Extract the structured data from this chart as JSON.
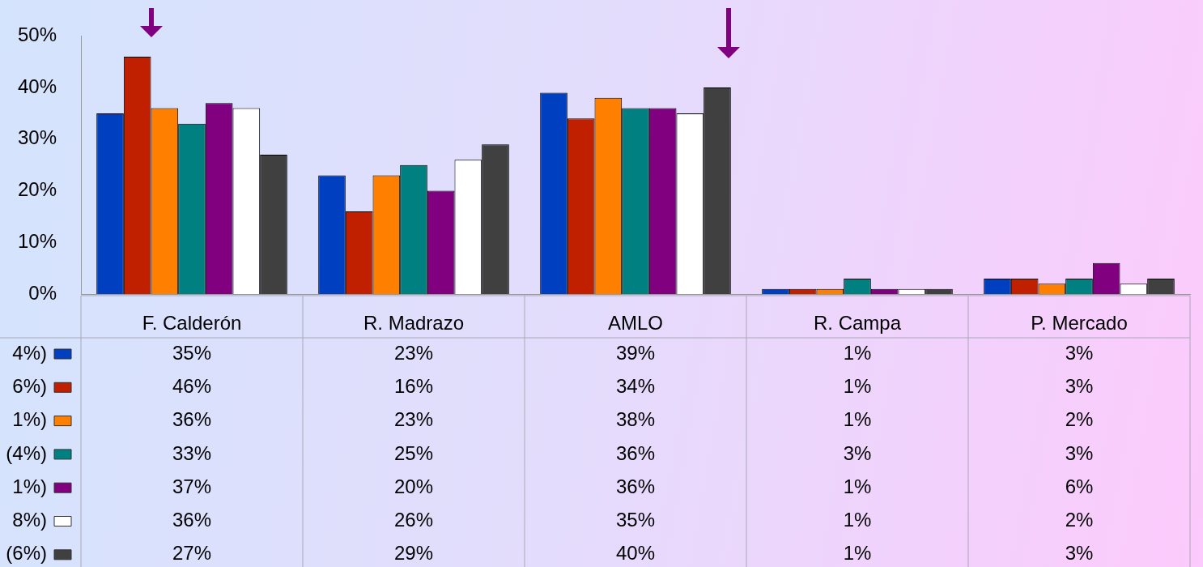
{
  "chart_data": {
    "type": "bar",
    "categories": [
      "F. Calderón",
      "R. Madrazo",
      "AMLO",
      "R. Campa",
      "P. Mercado"
    ],
    "series": [
      {
        "name": "4%)",
        "color": "#0040c0",
        "values": [
          35,
          23,
          39,
          1,
          3
        ],
        "value_labels": [
          "35%",
          "23%",
          "39%",
          "1%",
          "3%"
        ]
      },
      {
        "name": "6%)",
        "color": "#c02000",
        "values": [
          46,
          16,
          34,
          1,
          3
        ],
        "value_labels": [
          "46%",
          "16%",
          "34%",
          "1%",
          "3%"
        ]
      },
      {
        "name": "1%)",
        "color": "#ff8000",
        "values": [
          36,
          23,
          38,
          1,
          2
        ],
        "value_labels": [
          "36%",
          "23%",
          "38%",
          "1%",
          "2%"
        ]
      },
      {
        "name": "(4%)",
        "color": "#008080",
        "values": [
          33,
          25,
          36,
          3,
          3
        ],
        "value_labels": [
          "33%",
          "25%",
          "36%",
          "3%",
          "3%"
        ]
      },
      {
        "name": "1%)",
        "color": "#800080",
        "values": [
          37,
          20,
          36,
          1,
          6
        ],
        "value_labels": [
          "37%",
          "20%",
          "36%",
          "1%",
          "6%"
        ]
      },
      {
        "name": "8%)",
        "color": "#ffffff",
        "values": [
          36,
          26,
          35,
          1,
          2
        ],
        "value_labels": [
          "36%",
          "26%",
          "35%",
          "1%",
          "2%"
        ]
      },
      {
        "name": "(6%)",
        "color": "#404040",
        "values": [
          27,
          29,
          40,
          1,
          3
        ],
        "value_labels": [
          "27%",
          "29%",
          "40%",
          "1%",
          "3%"
        ]
      }
    ],
    "ylim": [
      0,
      50
    ],
    "yticks": [
      {
        "value": 0,
        "label": "0%"
      },
      {
        "value": 10,
        "label": "10%"
      },
      {
        "value": 20,
        "label": "20%"
      },
      {
        "value": 30,
        "label": "30%"
      },
      {
        "value": 40,
        "label": "40%"
      },
      {
        "value": 50,
        "label": "50%"
      }
    ],
    "grid": false,
    "legend": "left"
  }
}
